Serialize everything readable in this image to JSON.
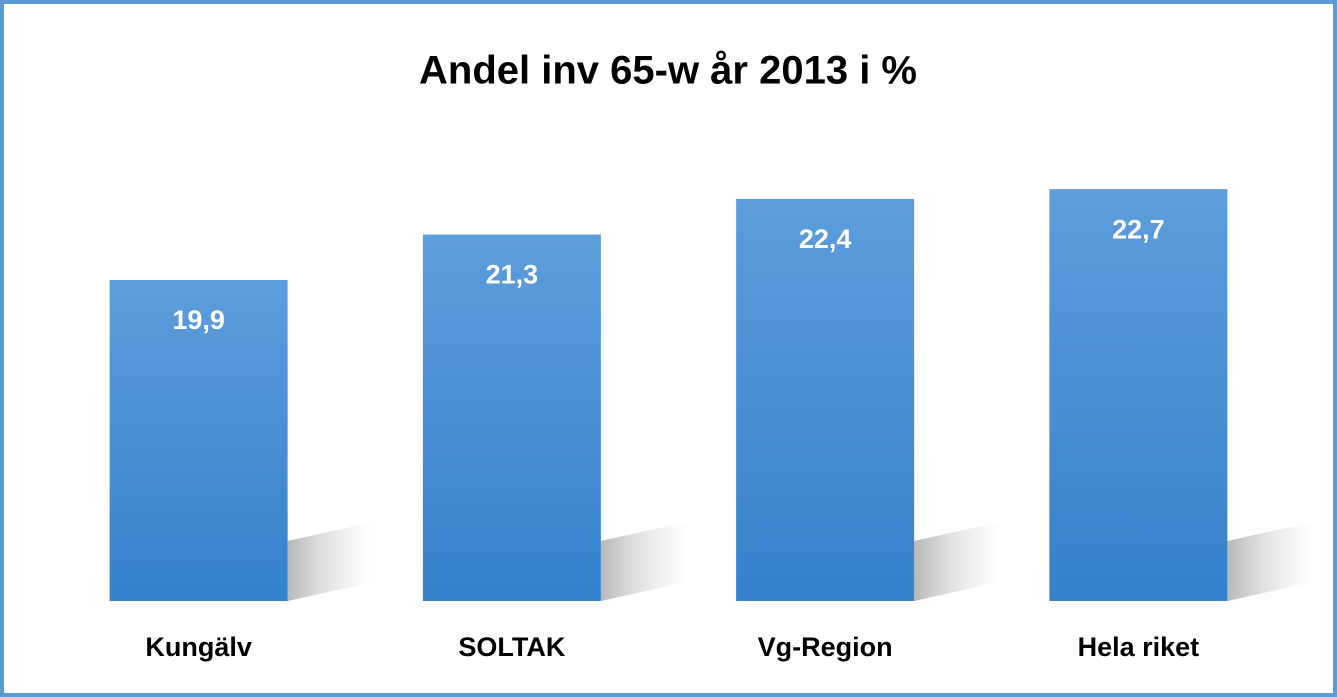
{
  "chart_data": {
    "type": "bar",
    "title": "Andel inv 65-w år 2013 i %",
    "categories": [
      "Kungälv",
      "SOLTAK",
      "Vg-Region",
      "Hela riket"
    ],
    "values": [
      19.9,
      21.3,
      22.4,
      22.7
    ],
    "value_labels": [
      "19,9",
      "21,3",
      "22,4",
      "22,7"
    ],
    "color": "#4a90d9",
    "ylim": [
      10,
      24
    ]
  }
}
